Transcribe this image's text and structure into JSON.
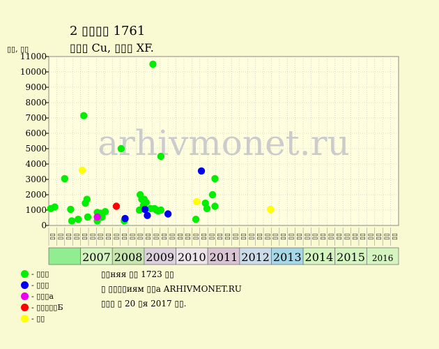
{
  "chart_data": {
    "type": "scatter",
    "title": "2 ▯▯▯▯ 1761",
    "subtitle": "▯▯▯ Cu, ▯▯▯ XF.",
    "ylabel": "▯▯, ▯▯",
    "ylim": [
      0,
      11000
    ],
    "yticks": [
      "0",
      "1000",
      "2000",
      "3000",
      "4000",
      "5000",
      "6000",
      "7000",
      "8000",
      "9000",
      "10000",
      "11000"
    ],
    "grid": true,
    "watermark": "arhivmonet.ru",
    "quarter_labels": [
      "▯▯",
      "▯▯",
      "▯▯",
      "▯▯"
    ],
    "years": [
      {
        "label": "",
        "color": "#90ee90"
      },
      {
        "label": "2007",
        "color": "#d5f5c0"
      },
      {
        "label": "2008",
        "color": "#c8e6b0"
      },
      {
        "label": "2009",
        "color": "#ddd0dd"
      },
      {
        "label": "2010",
        "color": "#ede4ea"
      },
      {
        "label": "2011",
        "color": "#d9c4d4"
      },
      {
        "label": "2012",
        "color": "#cbdce8"
      },
      {
        "label": "2013",
        "color": "#a6d7e6"
      },
      {
        "label": "2014",
        "color": "#d5f5c0"
      },
      {
        "label": "2015",
        "color": "#d5f5c0"
      },
      {
        "label": "2016",
        "color": "#d5f5c0"
      }
    ],
    "series": [
      {
        "name": "- ▯▯▯",
        "color": "#00ee00",
        "points": [
          [
            0.25,
            1100
          ],
          [
            0.75,
            1200
          ],
          [
            2.0,
            3050
          ],
          [
            2.75,
            1050
          ],
          [
            2.9,
            300
          ],
          [
            3.7,
            400
          ],
          [
            4.4,
            7150
          ],
          [
            4.6,
            1450
          ],
          [
            4.8,
            1700
          ],
          [
            4.9,
            550
          ],
          [
            6.1,
            300
          ],
          [
            6.1,
            850
          ],
          [
            6.5,
            800
          ],
          [
            6.7,
            550
          ],
          [
            7.1,
            900
          ],
          [
            9.1,
            5000
          ],
          [
            9.5,
            300
          ],
          [
            11.5,
            2000
          ],
          [
            11.7,
            1700
          ],
          [
            11.9,
            1300
          ],
          [
            12.0,
            1700
          ],
          [
            12.25,
            1500
          ],
          [
            11.4,
            1000
          ],
          [
            12.8,
            1100
          ],
          [
            13.1,
            10500
          ],
          [
            13.3,
            1100
          ],
          [
            13.55,
            1000
          ],
          [
            13.75,
            950
          ],
          [
            14.1,
            1000
          ],
          [
            14.1,
            4500
          ],
          [
            18.5,
            400
          ],
          [
            19.7,
            1450
          ],
          [
            19.9,
            1100
          ],
          [
            20.6,
            2000
          ],
          [
            20.9,
            1250
          ],
          [
            20.9,
            3050
          ]
        ]
      },
      {
        "name": "- ▯▯▯",
        "color": "#0000ee",
        "points": [
          [
            9.6,
            450
          ],
          [
            12.1,
            1050
          ],
          [
            12.4,
            650
          ],
          [
            15.0,
            750
          ],
          [
            19.2,
            3550
          ]
        ]
      },
      {
        "name": "- ▯▯▯а",
        "color": "#ee00ee",
        "points": [
          [
            6.1,
            550
          ]
        ]
      },
      {
        "name": "- ▯▯▯▯▯Б",
        "color": "#ff0000",
        "points": [
          [
            8.5,
            1250
          ]
        ]
      },
      {
        "name": "- ▯▯",
        "color": "#ffff00",
        "points": [
          [
            4.2,
            3600
          ],
          [
            18.6,
            1550
          ],
          [
            27.9,
            1050
          ]
        ]
      }
    ]
  },
  "notes": {
    "line1": "▯▯няя ▯▯ 1723 ▯▯",
    "line2": "▯ ▯▯▯▯иям ▯▯а ARHIVMONET.RU",
    "line3": "▯▯▯ ▯ 20 ▯я 2017 ▯▯."
  }
}
